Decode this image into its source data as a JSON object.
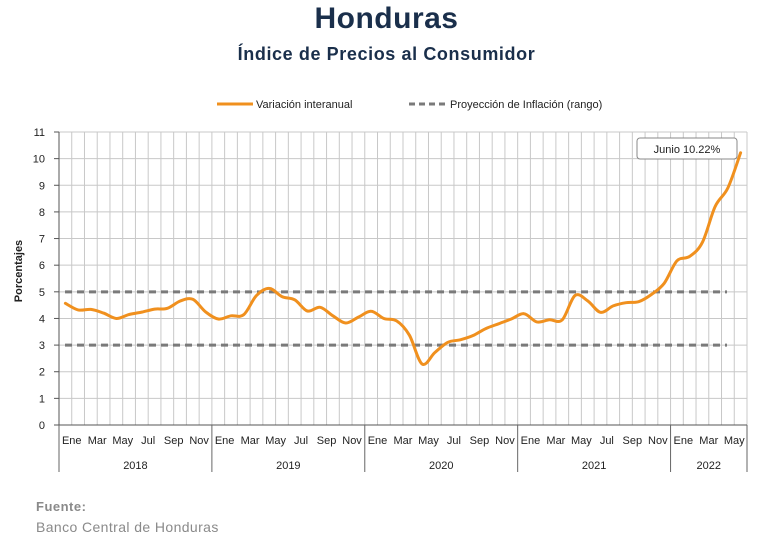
{
  "header": {
    "title": "Honduras",
    "subtitle": "Índice de Precios al Consumidor"
  },
  "source": {
    "label": "Fuente:",
    "text": "Banco Central de Honduras"
  },
  "colors": {
    "series": "#f0901e",
    "projection": "#7a7a7a",
    "grid": "#c8c8c8",
    "title": "#1a2f4b"
  },
  "chart_data": {
    "type": "line",
    "title": "Índice de Precios al Consumidor",
    "xlabel": "",
    "ylabel": "Porcentajes",
    "ylim": [
      0,
      11
    ],
    "yticks": [
      0,
      1,
      2,
      3,
      4,
      5,
      6,
      7,
      8,
      9,
      10,
      11
    ],
    "grid": true,
    "legend_position": "top",
    "month_tick_labels": [
      "Ene",
      "Mar",
      "May",
      "Jul",
      "Sep",
      "Nov"
    ],
    "years": [
      "2018",
      "2019",
      "2020",
      "2021",
      "2022"
    ],
    "x": [
      "Ene 2018",
      "Feb 2018",
      "Mar 2018",
      "Abr 2018",
      "May 2018",
      "Jun 2018",
      "Jul 2018",
      "Ago 2018",
      "Sep 2018",
      "Oct 2018",
      "Nov 2018",
      "Dic 2018",
      "Ene 2019",
      "Feb 2019",
      "Mar 2019",
      "Abr 2019",
      "May 2019",
      "Jun 2019",
      "Jul 2019",
      "Ago 2019",
      "Sep 2019",
      "Oct 2019",
      "Nov 2019",
      "Dic 2019",
      "Ene 2020",
      "Feb 2020",
      "Mar 2020",
      "Abr 2020",
      "May 2020",
      "Jun 2020",
      "Jul 2020",
      "Ago 2020",
      "Sep 2020",
      "Oct 2020",
      "Nov 2020",
      "Dic 2020",
      "Ene 2021",
      "Feb 2021",
      "Mar 2021",
      "Abr 2021",
      "May 2021",
      "Jun 2021",
      "Jul 2021",
      "Ago 2021",
      "Sep 2021",
      "Oct 2021",
      "Nov 2021",
      "Dic 2021",
      "Ene 2022",
      "Feb 2022",
      "Mar 2022",
      "Abr 2022",
      "May 2022",
      "Jun 2022"
    ],
    "series": [
      {
        "name": "Variación interanual",
        "values": [
          4.57,
          4.32,
          4.34,
          4.2,
          4.0,
          4.15,
          4.24,
          4.35,
          4.38,
          4.65,
          4.72,
          4.25,
          3.98,
          4.1,
          4.14,
          4.86,
          5.13,
          4.82,
          4.7,
          4.28,
          4.42,
          4.1,
          3.83,
          4.05,
          4.27,
          4.0,
          3.91,
          3.37,
          2.29,
          2.72,
          3.1,
          3.2,
          3.36,
          3.62,
          3.8,
          3.98,
          4.18,
          3.87,
          3.95,
          3.95,
          4.86,
          4.66,
          4.23,
          4.47,
          4.59,
          4.63,
          4.9,
          5.32,
          6.16,
          6.33,
          6.86,
          8.2,
          8.9,
          10.22
        ]
      },
      {
        "name": "Proyección de Inflación (rango)",
        "lower": 3,
        "upper": 5
      }
    ],
    "annotations": [
      {
        "text": "Junio 10.22%",
        "x": "Jun 2022",
        "y": 10.22
      }
    ]
  }
}
